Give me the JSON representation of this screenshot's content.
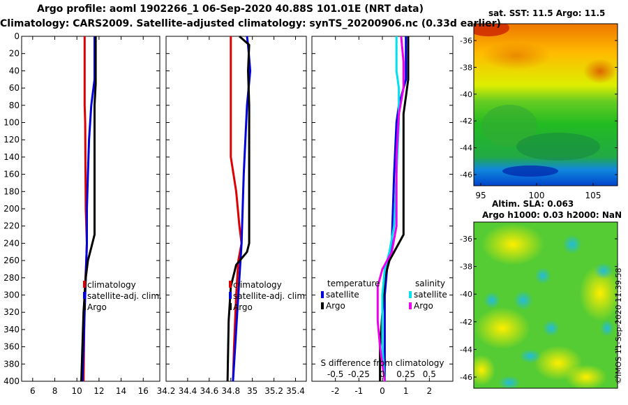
{
  "header": {
    "title_line1": "Argo profile: aoml 1902266_1 06-Sep-2020 40.88S 101.01E (NRT data)",
    "title_line2": "Climatology: CARS2009. Satellite-adjusted climatology: synTS_20200906.nc (0.33d earlier)"
  },
  "sst_map": {
    "title": "sat. SST: 11.5 Argo: 11.5",
    "lat_ticks": [
      "-36",
      "-38",
      "-40",
      "-42",
      "-44",
      "-46"
    ],
    "lon_ticks": [
      "95",
      "100",
      "105"
    ]
  },
  "sla_map": {
    "title_line1": "Altim. SLA: 0.063",
    "title_line2": "Argo h1000: 0.03 h2000: NaN",
    "lat_ticks": [
      "-36",
      "-38",
      "-40",
      "-42",
      "-44",
      "-46"
    ]
  },
  "watermark": "©IMOS 11-Sep-2020 11:39:58",
  "colors": {
    "climatology": "#dd0000",
    "satellite": "#0000dd",
    "argo": "#000000",
    "sat_salinity": "#00e0f0",
    "argo_salinity": "#ee00ee"
  },
  "chart_data": [
    {
      "type": "line",
      "name": "temperature-profile",
      "title": "",
      "xlabel": "",
      "ylabel": "",
      "xlim": [
        5,
        17.5
      ],
      "ylim": [
        400,
        0
      ],
      "x_ticks": [
        6,
        8,
        10,
        12,
        14,
        16
      ],
      "y_ticks": [
        0,
        20,
        40,
        60,
        80,
        100,
        120,
        140,
        160,
        180,
        200,
        220,
        240,
        260,
        280,
        300,
        320,
        340,
        360,
        380,
        400
      ],
      "legend": [
        "climatology",
        "satellite-adj. clim.",
        "Argo"
      ],
      "series": [
        {
          "name": "climatology",
          "color": "#dd0000",
          "points": [
            [
              10.7,
              0
            ],
            [
              10.7,
              80
            ],
            [
              10.75,
              100
            ],
            [
              10.8,
              200
            ],
            [
              10.9,
              240
            ],
            [
              10.85,
              260
            ],
            [
              10.7,
              300
            ],
            [
              10.6,
              400
            ]
          ]
        },
        {
          "name": "satellite-adj. clim.",
          "color": "#0000dd",
          "points": [
            [
              11.6,
              0
            ],
            [
              11.6,
              50
            ],
            [
              11.3,
              80
            ],
            [
              11.1,
              120
            ],
            [
              11.0,
              160
            ],
            [
              10.9,
              200
            ],
            [
              10.9,
              240
            ],
            [
              10.8,
              280
            ],
            [
              10.7,
              320
            ],
            [
              10.6,
              360
            ],
            [
              10.5,
              400
            ]
          ]
        },
        {
          "name": "Argo",
          "color": "#000000",
          "points": [
            [
              11.7,
              0
            ],
            [
              11.7,
              55
            ],
            [
              11.6,
              80
            ],
            [
              11.6,
              230
            ],
            [
              11.3,
              245
            ],
            [
              11.0,
              260
            ],
            [
              10.8,
              280
            ],
            [
              10.6,
              320
            ],
            [
              10.5,
              360
            ],
            [
              10.4,
              400
            ]
          ]
        }
      ]
    },
    {
      "type": "line",
      "name": "salinity-profile",
      "title": "",
      "xlabel": "",
      "ylabel": "",
      "xlim": [
        34.2,
        35.5
      ],
      "ylim": [
        400,
        0
      ],
      "x_ticks": [
        34.2,
        34.4,
        34.6,
        34.8,
        35,
        35.2,
        35.4
      ],
      "x_tick_labels": [
        "34.2",
        "34.4",
        "34.6",
        "34.8",
        "35",
        "35.2",
        "35.4"
      ],
      "legend": [
        "climatology",
        "satellite-adj. clim.",
        "Argo"
      ],
      "series": [
        {
          "name": "climatology",
          "color": "#dd0000",
          "points": [
            [
              34.8,
              0
            ],
            [
              34.8,
              140
            ],
            [
              34.85,
              180
            ],
            [
              34.88,
              220
            ],
            [
              34.9,
              240
            ],
            [
              34.87,
              260
            ],
            [
              34.85,
              300
            ],
            [
              34.83,
              360
            ],
            [
              34.82,
              400
            ]
          ]
        },
        {
          "name": "satellite-adj. clim.",
          "color": "#0000dd",
          "points": [
            [
              34.95,
              0
            ],
            [
              34.96,
              10
            ],
            [
              34.98,
              40
            ],
            [
              34.95,
              80
            ],
            [
              34.92,
              160
            ],
            [
              34.9,
              240
            ],
            [
              34.88,
              280
            ],
            [
              34.86,
              320
            ],
            [
              34.84,
              360
            ],
            [
              34.82,
              400
            ]
          ]
        },
        {
          "name": "Argo",
          "color": "#000000",
          "points": [
            [
              34.88,
              0
            ],
            [
              34.97,
              10
            ],
            [
              34.96,
              40
            ],
            [
              34.97,
              80
            ],
            [
              34.97,
              240
            ],
            [
              34.95,
              250
            ],
            [
              34.85,
              265
            ],
            [
              34.8,
              290
            ],
            [
              34.78,
              330
            ],
            [
              34.77,
              400
            ]
          ]
        }
      ]
    },
    {
      "type": "line",
      "name": "difference-profile",
      "title": "",
      "xlabel": "",
      "ylabel": "",
      "xlim": [
        -3,
        3
      ],
      "ylim": [
        400,
        0
      ],
      "x_ticks": [
        -2,
        -1,
        0,
        1,
        2
      ],
      "secondary_axis": {
        "label": "S difference from climatology",
        "tick_labels": [
          "-0.5",
          "-0.25",
          "0",
          "0.25",
          "0.5"
        ],
        "tick_values_in_T_units": [
          -2,
          -1,
          0,
          1,
          2
        ]
      },
      "legend_temperature": {
        "title": "temperature",
        "entries": [
          "satellite",
          "Argo"
        ]
      },
      "legend_salinity": {
        "title": "salinity",
        "entries": [
          "satellite",
          "Argo"
        ]
      },
      "series": [
        {
          "name": "temperature satellite",
          "color": "#0000dd",
          "points": [
            [
              1.0,
              0
            ],
            [
              1.0,
              50
            ],
            [
              0.7,
              80
            ],
            [
              0.6,
              100
            ],
            [
              0.5,
              160
            ],
            [
              0.4,
              240
            ],
            [
              0.2,
              270
            ],
            [
              0.1,
              300
            ],
            [
              0.1,
              400
            ]
          ]
        },
        {
          "name": "temperature Argo",
          "color": "#000000",
          "points": [
            [
              1.1,
              0
            ],
            [
              1.1,
              50
            ],
            [
              1.0,
              70
            ],
            [
              0.9,
              90
            ],
            [
              0.9,
              230
            ],
            [
              0.6,
              245
            ],
            [
              0.3,
              260
            ],
            [
              0.1,
              280
            ],
            [
              0.0,
              320
            ],
            [
              -0.1,
              360
            ],
            [
              -0.1,
              400
            ]
          ]
        },
        {
          "name": "salinity satellite",
          "color": "#00e0f0",
          "points": [
            [
              0.6,
              0
            ],
            [
              0.6,
              40
            ],
            [
              0.7,
              60
            ],
            [
              0.7,
              100
            ],
            [
              0.6,
              160
            ],
            [
              0.5,
              220
            ],
            [
              0.3,
              250
            ],
            [
              0.1,
              270
            ],
            [
              0.0,
              300
            ],
            [
              0.0,
              360
            ],
            [
              0.1,
              400
            ]
          ]
        },
        {
          "name": "salinity Argo",
          "color": "#ee00ee",
          "points": [
            [
              0.8,
              0
            ],
            [
              0.9,
              30
            ],
            [
              0.9,
              60
            ],
            [
              0.7,
              90
            ],
            [
              0.6,
              140
            ],
            [
              0.6,
              220
            ],
            [
              0.4,
              250
            ],
            [
              0.0,
              270
            ],
            [
              -0.2,
              290
            ],
            [
              -0.2,
              330
            ],
            [
              -0.1,
              360
            ],
            [
              0.1,
              400
            ]
          ]
        }
      ]
    }
  ]
}
